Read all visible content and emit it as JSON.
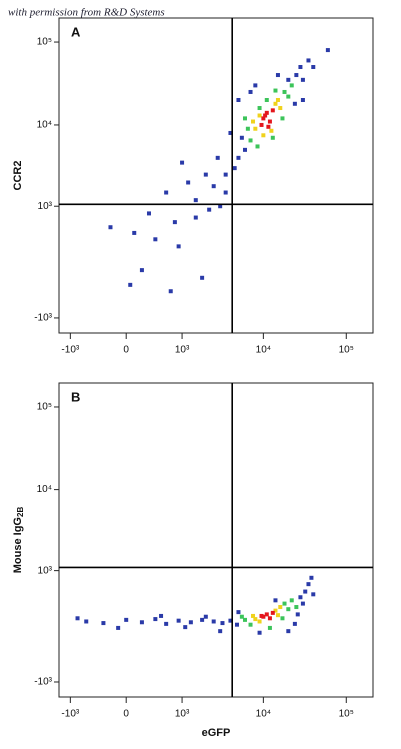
{
  "watermark": "with permission from R&D Systems",
  "chart_data": [
    {
      "type": "scatter",
      "panel_label": "A",
      "y_label": "CCR2",
      "xscale": "biexponential",
      "yscale": "biexponential",
      "xlim": [
        -1400,
        210000
      ],
      "ylim": [
        -1560,
        195000
      ],
      "xticks": [
        {
          "value": -1000,
          "label": "-10³"
        },
        0,
        {
          "value": 1000,
          "label": "10³"
        },
        {
          "value": 10000,
          "label": "10⁴"
        },
        {
          "value": 100000,
          "label": "10⁵"
        }
      ],
      "yticks": [
        {
          "value": -1000,
          "label": "-10³"
        },
        {
          "value": 1000,
          "label": "10³"
        },
        {
          "value": 10000,
          "label": "10⁴"
        },
        {
          "value": 100000,
          "label": "10⁵"
        }
      ],
      "gates": {
        "x": 4200,
        "y": 1060
      },
      "series": [
        {
          "color": "#2a3aa8",
          "x": [
            5000,
            6000,
            5500,
            25000,
            30000,
            28000,
            20000,
            24000,
            4500,
            5000,
            7000,
            35000,
            40000,
            4000,
            8000,
            3500,
            30000,
            15000,
            2500,
            1500,
            800,
            400,
            200,
            1200,
            2000,
            600,
            300,
            100,
            900,
            1500,
            2800,
            3000,
            -200,
            50,
            1800,
            700,
            3500,
            2200,
            1000,
            60000
          ],
          "values": [
            4000,
            5000,
            7000,
            40000,
            35000,
            50000,
            35000,
            18000,
            3000,
            20000,
            25000,
            60000,
            50000,
            8000,
            30000,
            2500,
            20000,
            40000,
            1800,
            1200,
            600,
            300,
            -100,
            2000,
            2500,
            1500,
            800,
            400,
            200,
            700,
            4000,
            1000,
            500,
            -300,
            -200,
            -400,
            1500,
            900,
            3500,
            80000
          ]
        },
        {
          "color": "#3cc45a",
          "x": [
            7000,
            18000,
            6500,
            20000,
            8500,
            14000,
            11000,
            17000,
            6000,
            22000,
            9000,
            13000
          ],
          "values": [
            6500,
            25000,
            9000,
            22000,
            5500,
            26000,
            20000,
            12000,
            12000,
            30000,
            16000,
            7000
          ]
        },
        {
          "color": "#f0d21c",
          "x": [
            8000,
            14000,
            9000,
            12500,
            15000,
            7500,
            16000,
            10000
          ],
          "values": [
            9000,
            18000,
            13000,
            8500,
            20000,
            11000,
            16000,
            7500
          ]
        },
        {
          "color": "#e4161c",
          "x": [
            10000,
            11000,
            12000,
            9500,
            13000,
            11500,
            10500
          ],
          "values": [
            12000,
            14000,
            11000,
            10000,
            15000,
            9500,
            13000
          ]
        }
      ]
    },
    {
      "type": "scatter",
      "panel_label": "B",
      "y_label": "Mouse IgG",
      "y_label_subscript": "2B",
      "x_label": "eGFP",
      "xscale": "biexponential",
      "yscale": "biexponential",
      "xlim": [
        -1400,
        210000
      ],
      "ylim": [
        -1560,
        195000
      ],
      "xticks": [
        {
          "value": -1000,
          "label": "-10³"
        },
        0,
        {
          "value": 1000,
          "label": "10³"
        },
        {
          "value": 10000,
          "label": "10⁴"
        },
        {
          "value": 100000,
          "label": "10⁵"
        }
      ],
      "yticks": [
        {
          "value": -1000,
          "label": "-10³"
        },
        {
          "value": 1000,
          "label": "10³"
        },
        {
          "value": 10000,
          "label": "10⁴"
        },
        {
          "value": 100000,
          "label": "10⁵"
        }
      ],
      "gates": {
        "x": 4200,
        "y": 1100
      },
      "series": [
        {
          "color": "#2a3aa8",
          "x": [
            -600,
            -300,
            0,
            200,
            400,
            600,
            900,
            1300,
            1800,
            2500,
            3200,
            4000,
            4800,
            -800,
            -100,
            500,
            1100,
            2000,
            3000,
            28000,
            32000,
            35000,
            30000,
            26000,
            40000,
            20000,
            9000,
            5000,
            14000,
            38000,
            24000
          ],
          "values": [
            60,
            40,
            80,
            50,
            90,
            30,
            70,
            50,
            80,
            60,
            40,
            70,
            20,
            100,
            -20,
            130,
            -10,
            120,
            -60,
            400,
            500,
            650,
            300,
            150,
            450,
            -60,
            -80,
            180,
            350,
            800,
            30
          ]
        },
        {
          "color": "#3cc45a",
          "x": [
            6000,
            18000,
            7000,
            20000,
            5500,
            12000,
            17000,
            22000,
            25000
          ],
          "values": [
            80,
            300,
            20,
            220,
            120,
            -20,
            100,
            350,
            250
          ]
        },
        {
          "color": "#f0d21c",
          "x": [
            8000,
            14000,
            9000,
            15000,
            7500,
            16000
          ],
          "values": [
            90,
            200,
            60,
            140,
            130,
            250
          ]
        },
        {
          "color": "#e4161c",
          "x": [
            10000,
            11000,
            12000,
            9500,
            13000
          ],
          "values": [
            120,
            150,
            100,
            130,
            170
          ]
        }
      ]
    }
  ]
}
